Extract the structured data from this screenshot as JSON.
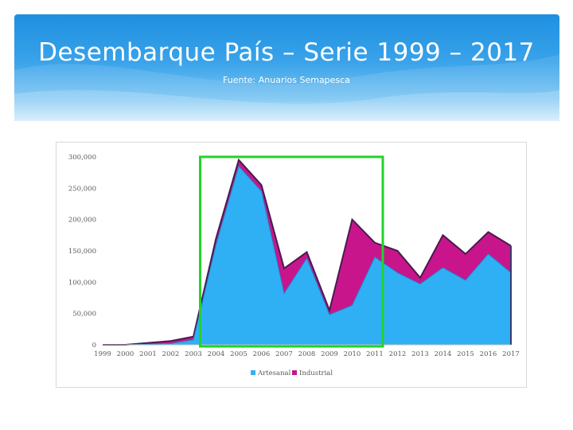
{
  "slide": {
    "title": "Desembarque País – Serie 1999 – 2017",
    "subtitle": "Fuente: Anuarios Semapesca"
  },
  "colors": {
    "banner_top": "#1e8fe0",
    "artesanal": "#2fb0f5",
    "industrial": "#c8158c",
    "highlight_box": "#22d32a"
  },
  "chart_data": {
    "type": "area",
    "stacked": true,
    "categories": [
      "1999",
      "2000",
      "2001",
      "2002",
      "2003",
      "2004",
      "2005",
      "2006",
      "2007",
      "2008",
      "2009",
      "2010",
      "2011",
      "2012",
      "2013",
      "2014",
      "2015",
      "2016",
      "2017"
    ],
    "series": [
      {
        "name": "Artesanal",
        "values": [
          0,
          0,
          1000,
          2000,
          8000,
          160000,
          285000,
          245000,
          82000,
          138000,
          48000,
          63000,
          140000,
          115000,
          97000,
          123000,
          103000,
          145000,
          115000
        ]
      },
      {
        "name": "Industrial",
        "values": [
          0,
          0,
          2000,
          4000,
          5000,
          10000,
          10000,
          10000,
          40000,
          10000,
          7000,
          137000,
          23000,
          35000,
          10000,
          52000,
          42000,
          35000,
          43000
        ]
      }
    ],
    "ylim": [
      0,
      300000
    ],
    "yticks": [
      "0",
      "50,000",
      "100,000",
      "150,000",
      "200,000",
      "250,000",
      "300,000"
    ],
    "ytick_values": [
      0,
      50000,
      100000,
      150000,
      200000,
      250000,
      300000
    ],
    "legend": [
      "Artesanal",
      "Industrial"
    ],
    "legend_position": "bottom",
    "highlight_range": [
      "2004",
      "2011"
    ]
  }
}
